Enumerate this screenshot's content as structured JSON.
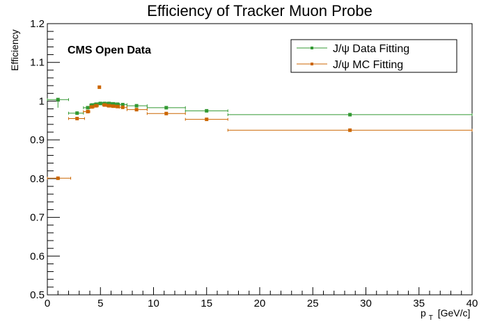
{
  "chart_data": {
    "type": "scatter",
    "title": "Efficiency of Tracker Muon Probe",
    "annotation": "CMS Open Data",
    "xlabel": "p",
    "xlabel_sub": "T",
    "xlabel_unit": "[GeV/c]",
    "ylabel": "Efficiency",
    "xlim": [
      0,
      40
    ],
    "ylim": [
      0.5,
      1.2
    ],
    "x_ticks": [
      0,
      5,
      10,
      15,
      20,
      25,
      30,
      35,
      40
    ],
    "x_tick_labels": [
      "0",
      "5",
      "10",
      "15",
      "20",
      "25",
      "30",
      "35",
      "40"
    ],
    "y_ticks": [
      0.5,
      0.6,
      0.7,
      0.8,
      0.9,
      1.0,
      1.1,
      1.2
    ],
    "y_tick_labels": [
      "0.5",
      "0.6",
      "0.7",
      "0.8",
      "0.9",
      "1",
      "1.1",
      "1.2"
    ],
    "grid": false,
    "legend_position": "top-right",
    "series": [
      {
        "name": "J/ψ Data Fitting",
        "color": "#339933",
        "points": [
          {
            "x": 1.0,
            "xlo": 0.0,
            "xhi": 2.0,
            "y": 1.004,
            "ylo": 0.983,
            "yhi": 1.006
          },
          {
            "x": 2.8,
            "xlo": 2.0,
            "xhi": 3.4,
            "y": 0.969,
            "ylo": 0.967,
            "yhi": 0.971
          },
          {
            "x": 3.8,
            "xlo": 3.4,
            "xhi": 4.0,
            "y": 0.983,
            "ylo": 0.981,
            "yhi": 0.985
          },
          {
            "x": 4.2,
            "xlo": 4.0,
            "xhi": 4.4,
            "y": 0.99,
            "ylo": 0.988,
            "yhi": 0.992
          },
          {
            "x": 4.6,
            "xlo": 4.4,
            "xhi": 4.8,
            "y": 0.992,
            "ylo": 0.99,
            "yhi": 0.994
          },
          {
            "x": 5.0,
            "xlo": 4.8,
            "xhi": 5.2,
            "y": 0.994,
            "ylo": 0.992,
            "yhi": 0.996
          },
          {
            "x": 5.4,
            "xlo": 5.2,
            "xhi": 5.6,
            "y": 0.994,
            "ylo": 0.992,
            "yhi": 0.996
          },
          {
            "x": 5.8,
            "xlo": 5.6,
            "xhi": 6.0,
            "y": 0.994,
            "ylo": 0.992,
            "yhi": 0.996
          },
          {
            "x": 6.2,
            "xlo": 6.0,
            "xhi": 6.4,
            "y": 0.993,
            "ylo": 0.991,
            "yhi": 0.995
          },
          {
            "x": 6.6,
            "xlo": 6.4,
            "xhi": 6.8,
            "y": 0.992,
            "ylo": 0.99,
            "yhi": 0.994
          },
          {
            "x": 7.1,
            "xlo": 6.8,
            "xhi": 7.5,
            "y": 0.991,
            "ylo": 0.989,
            "yhi": 0.993
          },
          {
            "x": 8.4,
            "xlo": 7.5,
            "xhi": 9.4,
            "y": 0.988,
            "ylo": 0.986,
            "yhi": 0.99
          },
          {
            "x": 11.2,
            "xlo": 9.4,
            "xhi": 13.0,
            "y": 0.983,
            "ylo": 0.981,
            "yhi": 0.985
          },
          {
            "x": 15.0,
            "xlo": 13.0,
            "xhi": 17.0,
            "y": 0.975,
            "ylo": 0.973,
            "yhi": 0.977
          },
          {
            "x": 28.5,
            "xlo": 17.0,
            "xhi": 40.0,
            "y": 0.965,
            "ylo": 0.963,
            "yhi": 0.967
          }
        ]
      },
      {
        "name": "J/ψ MC Fitting",
        "color": "#cc6600",
        "points": [
          {
            "x": 1.0,
            "xlo": 0.0,
            "xhi": 2.2,
            "y": 0.801,
            "ylo": 0.799,
            "yhi": 0.803
          },
          {
            "x": 2.8,
            "xlo": 2.0,
            "xhi": 3.5,
            "y": 0.955,
            "ylo": 0.953,
            "yhi": 0.957
          },
          {
            "x": 3.8,
            "xlo": 3.4,
            "xhi": 4.0,
            "y": 0.973,
            "ylo": 0.971,
            "yhi": 0.975
          },
          {
            "x": 4.2,
            "xlo": 4.0,
            "xhi": 4.4,
            "y": 0.985,
            "ylo": 0.983,
            "yhi": 0.987
          },
          {
            "x": 4.6,
            "xlo": 4.4,
            "xhi": 4.8,
            "y": 0.988,
            "ylo": 0.986,
            "yhi": 0.99
          },
          {
            "x": 4.9,
            "xlo": 4.8,
            "xhi": 5.0,
            "y": 1.036,
            "ylo": 1.034,
            "yhi": 1.038
          },
          {
            "x": 5.4,
            "xlo": 5.2,
            "xhi": 5.6,
            "y": 0.99,
            "ylo": 0.988,
            "yhi": 0.992
          },
          {
            "x": 5.8,
            "xlo": 5.6,
            "xhi": 6.0,
            "y": 0.988,
            "ylo": 0.986,
            "yhi": 0.99
          },
          {
            "x": 6.2,
            "xlo": 6.0,
            "xhi": 6.4,
            "y": 0.987,
            "ylo": 0.985,
            "yhi": 0.989
          },
          {
            "x": 6.6,
            "xlo": 6.4,
            "xhi": 6.8,
            "y": 0.986,
            "ylo": 0.984,
            "yhi": 0.988
          },
          {
            "x": 7.1,
            "xlo": 6.8,
            "xhi": 7.5,
            "y": 0.984,
            "ylo": 0.982,
            "yhi": 0.986
          },
          {
            "x": 8.4,
            "xlo": 7.5,
            "xhi": 9.4,
            "y": 0.978,
            "ylo": 0.976,
            "yhi": 0.98
          },
          {
            "x": 11.2,
            "xlo": 9.4,
            "xhi": 13.0,
            "y": 0.968,
            "ylo": 0.966,
            "yhi": 0.97
          },
          {
            "x": 15.0,
            "xlo": 13.0,
            "xhi": 17.0,
            "y": 0.953,
            "ylo": 0.951,
            "yhi": 0.955
          },
          {
            "x": 28.5,
            "xlo": 17.0,
            "xhi": 40.0,
            "y": 0.925,
            "ylo": 0.921,
            "yhi": 0.929
          }
        ]
      }
    ]
  }
}
